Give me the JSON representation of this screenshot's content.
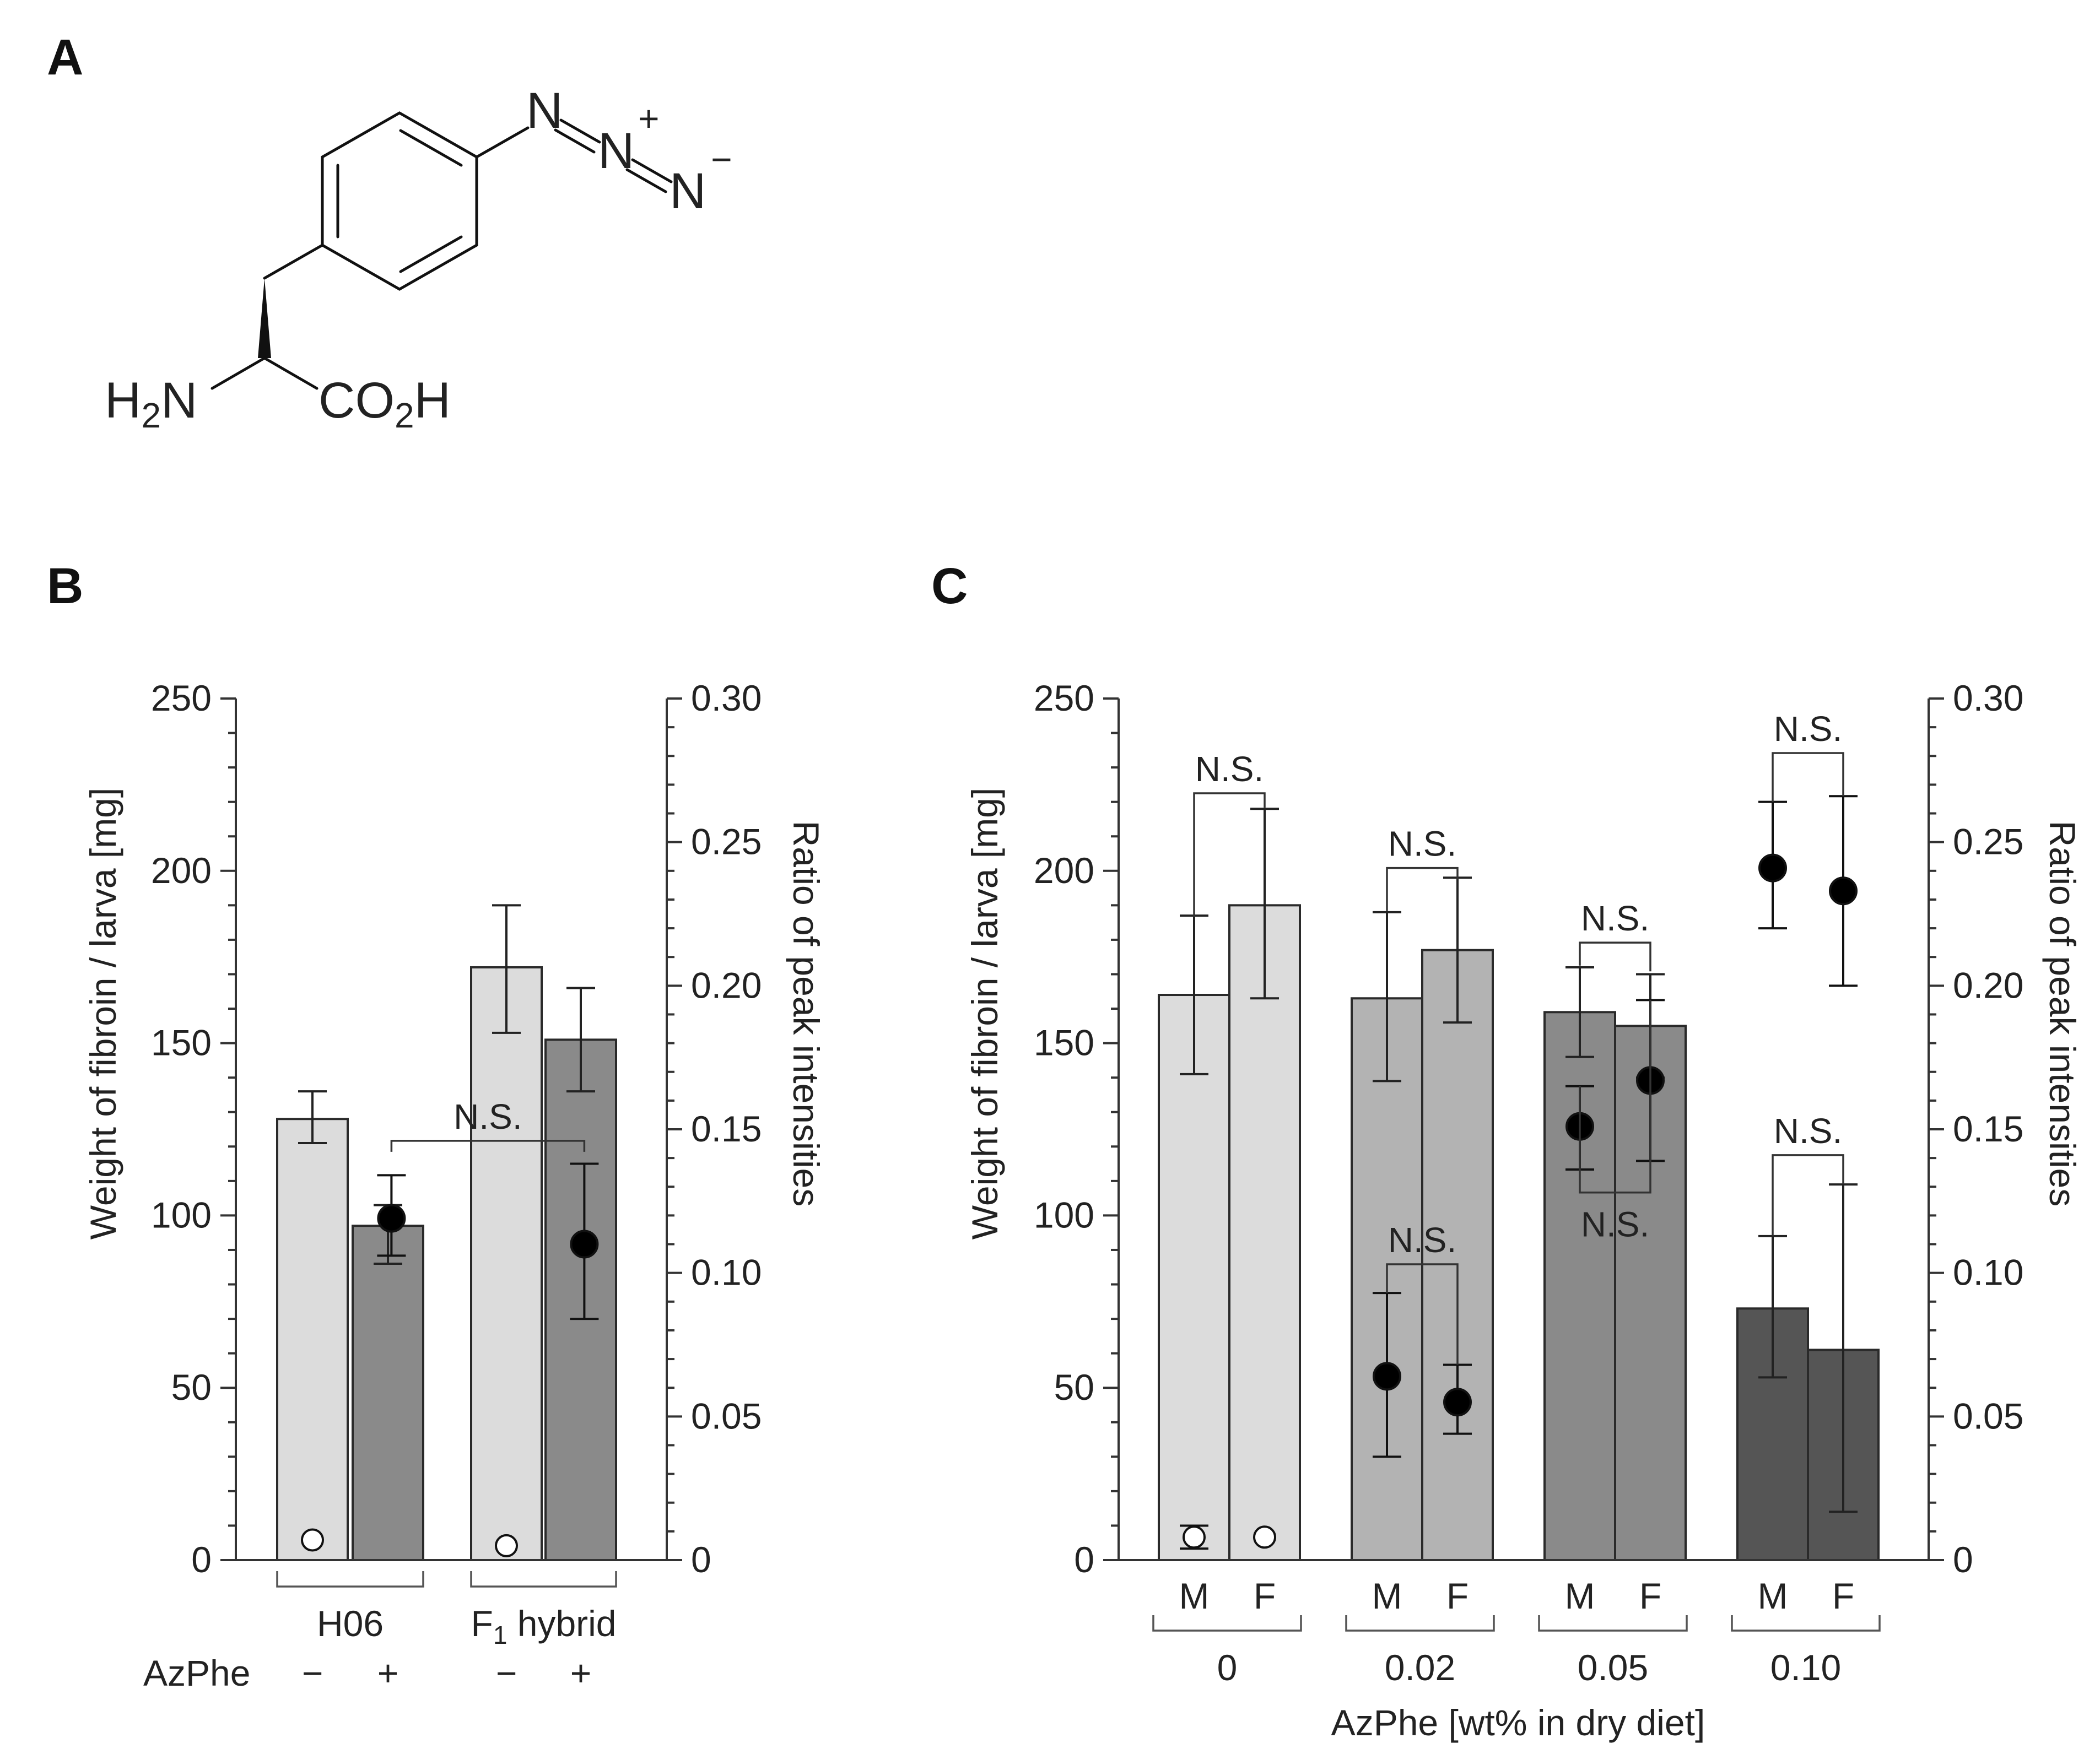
{
  "panels": {
    "a": "A",
    "b": "B",
    "c": "C"
  },
  "molecule": {
    "n": "N",
    "plus": "+",
    "minus": "−",
    "amine_h": "H",
    "amine_sub": "2",
    "amine_n": "N",
    "acid_co": "CO",
    "acid_sub": "2",
    "acid_h": "H"
  },
  "colors": {
    "light": "#dcdcdc",
    "medium": "#b3b3b3",
    "dark": "#8a8a8a",
    "darkest": "#555555",
    "point": "#000000"
  },
  "chart_data": [
    {
      "id": "B",
      "type": "bar",
      "ylabel": "Weight of fibroin / larva [mg]",
      "y2label": "Ratio of peak intensities",
      "ylim": [
        0,
        250
      ],
      "y2lim": [
        0,
        0.3
      ],
      "yticks": [
        "0",
        "50",
        "100",
        "150",
        "200",
        "250"
      ],
      "y2ticks": [
        "0",
        "0.05",
        "0.10",
        "0.15",
        "0.20",
        "0.25",
        "0.30"
      ],
      "groups": [
        {
          "label": "H06",
          "label_sub": "",
          "label_rest": ""
        },
        {
          "label": "F",
          "label_sub": "1",
          "label_rest": " hybrid"
        }
      ],
      "row_label": "AzPhe",
      "bars": [
        {
          "group": 0,
          "tick": "−",
          "color": "light",
          "value": 128,
          "err_lo": 121,
          "err_hi": 136,
          "ratio": 0.007,
          "ratio_lo": 0.007,
          "ratio_hi": 0.007,
          "marker": "open"
        },
        {
          "group": 0,
          "tick": "+",
          "color": "dark",
          "value": 97,
          "err_lo": 86,
          "err_hi": 103,
          "ratio": 0.119,
          "ratio_lo": 0.106,
          "ratio_hi": 0.134,
          "marker": "filled"
        },
        {
          "group": 1,
          "tick": "−",
          "color": "light",
          "value": 172,
          "err_lo": 153,
          "err_hi": 190,
          "ratio": 0.005,
          "ratio_lo": 0.005,
          "ratio_hi": 0.005,
          "marker": "open"
        },
        {
          "group": 1,
          "tick": "+",
          "color": "dark",
          "value": 151,
          "err_lo": 136,
          "err_hi": 166,
          "ratio": 0.11,
          "ratio_lo": 0.084,
          "ratio_hi": 0.138,
          "marker": "filled"
        }
      ],
      "annotations": [
        {
          "label": "N.S.",
          "from": 1,
          "to": 3,
          "y": 0.146,
          "axis": "y2",
          "dir": "down"
        }
      ]
    },
    {
      "id": "C",
      "type": "bar",
      "ylabel": "Weight of fibroin / larva [mg]",
      "y2label": "Ratio of peak intensities",
      "xlabel": "AzPhe [wt% in dry diet]",
      "ylim": [
        0,
        250
      ],
      "y2lim": [
        0,
        0.3
      ],
      "yticks": [
        "0",
        "50",
        "100",
        "150",
        "200",
        "250"
      ],
      "y2ticks": [
        "0",
        "0.05",
        "0.10",
        "0.15",
        "0.20",
        "0.25",
        "0.30"
      ],
      "groups": [
        {
          "label": "0"
        },
        {
          "label": "0.02"
        },
        {
          "label": "0.05"
        },
        {
          "label": "0.10"
        }
      ],
      "bars": [
        {
          "group": 0,
          "tick": "M",
          "color": "light",
          "value": 164,
          "err_lo": 141,
          "err_hi": 187,
          "ratio": 0.008,
          "ratio_lo": 0.004,
          "ratio_hi": 0.012,
          "marker": "open"
        },
        {
          "group": 0,
          "tick": "F",
          "color": "light",
          "value": 190,
          "err_lo": 163,
          "err_hi": 218,
          "ratio": 0.008,
          "ratio_lo": 0.008,
          "ratio_hi": 0.008,
          "marker": "open"
        },
        {
          "group": 1,
          "tick": "M",
          "color": "medium",
          "value": 163,
          "err_lo": 139,
          "err_hi": 188,
          "ratio": 0.064,
          "ratio_lo": 0.036,
          "ratio_hi": 0.093,
          "marker": "filled"
        },
        {
          "group": 1,
          "tick": "F",
          "color": "medium",
          "value": 177,
          "err_lo": 156,
          "err_hi": 198,
          "ratio": 0.055,
          "ratio_lo": 0.044,
          "ratio_hi": 0.068,
          "marker": "filled"
        },
        {
          "group": 2,
          "tick": "M",
          "color": "dark",
          "value": 159,
          "err_lo": 146,
          "err_hi": 172,
          "ratio": 0.151,
          "ratio_lo": 0.136,
          "ratio_hi": 0.165,
          "marker": "filled"
        },
        {
          "group": 2,
          "tick": "F",
          "color": "dark",
          "value": 155,
          "err_lo": 140,
          "err_hi": 170,
          "ratio": 0.167,
          "ratio_lo": 0.139,
          "ratio_hi": 0.195,
          "marker": "filled"
        },
        {
          "group": 3,
          "tick": "M",
          "color": "darkest",
          "value": 73,
          "err_lo": 53,
          "err_hi": 94,
          "ratio": 0.241,
          "ratio_lo": 0.22,
          "ratio_hi": 0.264,
          "marker": "filled"
        },
        {
          "group": 3,
          "tick": "F",
          "color": "darkest",
          "value": 61,
          "err_lo": 14,
          "err_hi": 109,
          "ratio": 0.233,
          "ratio_lo": 0.2,
          "ratio_hi": 0.266,
          "marker": "filled"
        }
      ],
      "annotations": [
        {
          "label": "N.S.",
          "from": 0,
          "to": 1,
          "y": 0.267,
          "axis": "y2",
          "dir": "down",
          "target_lo": 0.224,
          "target_hi": 0.262
        },
        {
          "label": "N.S.",
          "from": 2,
          "to": 3,
          "y": 0.241,
          "axis": "y2",
          "dir": "down",
          "target_lo": 0.226,
          "target_hi": 0.237
        },
        {
          "label": "N.S.",
          "from": 4,
          "to": 5,
          "y": 0.215,
          "axis": "y2",
          "dir": "down",
          "target_lo": 0.207,
          "target_hi": 0.205
        },
        {
          "label": "N.S.",
          "from": 4,
          "to": 5,
          "y": 0.128,
          "axis": "y2",
          "dir": "up",
          "target_lo": 0.165,
          "target_hi": 0.195,
          "label_pos": "below"
        },
        {
          "label": "N.S.",
          "from": 6,
          "to": 7,
          "y": 0.281,
          "axis": "y2",
          "dir": "down",
          "target_lo": 0.264,
          "target_hi": 0.266
        },
        {
          "label": "N.S.",
          "from": 6,
          "to": 7,
          "y": 0.141,
          "axis": "y2",
          "dir": "down",
          "target_lo": 0.113,
          "target_hi": 0.131
        },
        {
          "label": "N.S.",
          "from": 2,
          "to": 3,
          "y": 0.103,
          "axis": "y2",
          "dir": "down",
          "target_lo": 0.093,
          "target_hi": 0.068
        }
      ]
    }
  ]
}
